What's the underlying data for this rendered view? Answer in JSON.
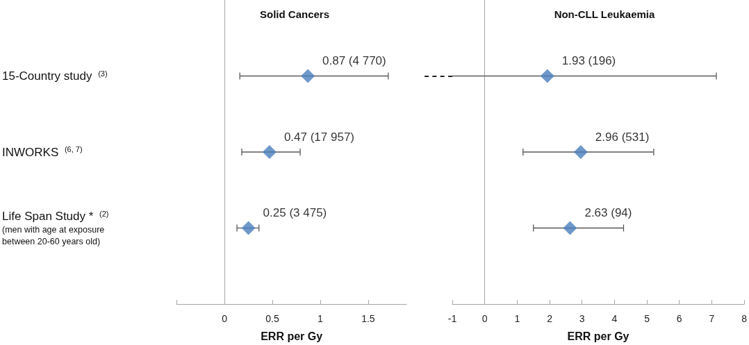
{
  "chart_data": [
    {
      "type": "scatter",
      "orientation": "horizontal",
      "title": "Solid Cancers",
      "xlabel": "ERR per Gy",
      "categories": [
        "15-Country study $^{(3)}$",
        "INWORKS $^{(6, 7)}$",
        "Life Span Study * $^{(2)}$\n(men with age at exposure\nbetween 20-60 years old)"
      ],
      "values": [
        0.87,
        0.47,
        0.25
      ],
      "errors": [
        [
          0.16,
          1.71
        ],
        [
          0.18,
          0.79
        ],
        [
          0.13,
          0.36
        ]
      ],
      "value_labels": [
        "0.87 (4 770)",
        "0.47 (17 957)",
        "0.25 (3 475)"
      ],
      "color": "#4a7ebb",
      "marker": "diamond",
      "xlim": [
        -0.5,
        1.9
      ],
      "xticks": [
        {
          "value": -0.5,
          "label": null
        },
        0,
        0.5,
        1,
        1.5
      ]
    },
    {
      "type": "scatter",
      "orientation": "horizontal",
      "title": "Non-CLL Leukaemia",
      "xlabel": "ERR per Gy",
      "values": [
        1.93,
        2.96,
        2.63
      ],
      "errors": [
        [
          -1,
          7.14
        ],
        [
          1.18,
          5.21
        ],
        [
          1.5,
          4.28
        ]
      ],
      "value_labels": [
        "1.93 (196)",
        "2.96 (531)",
        "2.63 (94)"
      ],
      "color": "#4a7ebb",
      "marker": "diamond",
      "tick_labels": "x",
      "xlim": [
        -1,
        8
      ],
      "xticks": [
        -1,
        0,
        1,
        2,
        3,
        4,
        5,
        6,
        7,
        8
      ]
    }
  ]
}
